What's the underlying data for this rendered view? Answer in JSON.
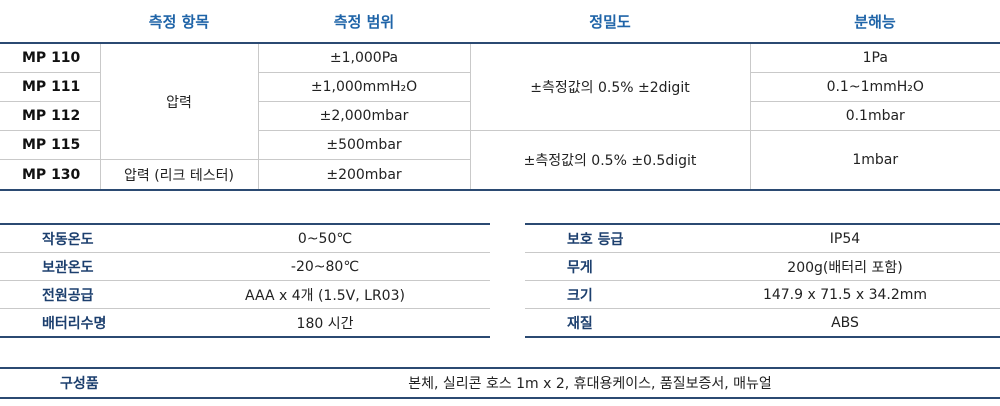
{
  "spec_table": {
    "headers": [
      "측정 항목",
      "측정 범위",
      "정밀도",
      "분해능"
    ],
    "models": [
      "MP 110",
      "MP 111",
      "MP 112",
      "MP 115",
      "MP 130"
    ],
    "items": [
      "압력",
      "압력 (리크 테스터)"
    ],
    "ranges": [
      "±1,000Pa",
      "±1,000mmH₂O",
      "±2,000mbar",
      "±500mbar",
      "±200mbar"
    ],
    "accuracies": [
      "±측정값의 0.5% ±2digit",
      "±측정값의 0.5% ±0.5digit"
    ],
    "resolutions": [
      "1Pa",
      "0.1~1mmH₂O",
      "0.1mbar",
      "1mbar"
    ]
  },
  "general_specs": {
    "left": [
      {
        "label": "작동온도",
        "value": "0~50℃"
      },
      {
        "label": "보관온도",
        "value": "-20~80℃"
      },
      {
        "label": "전원공급",
        "value": "AAA x 4개 (1.5V, LR03)"
      },
      {
        "label": "배터리수명",
        "value": "180 시간"
      }
    ],
    "right": [
      {
        "label": "보호 등급",
        "value": "IP54"
      },
      {
        "label": "무게",
        "value": "200g(배터리 포함)"
      },
      {
        "label": "크기",
        "value": "147.9 x 71.5 x 34.2mm"
      },
      {
        "label": "재질",
        "value": "ABS"
      }
    ]
  },
  "components": {
    "label": "구성품",
    "value": "본체, 실리콘 호스 1m x 2, 휴대용케이스, 품질보증서, 매뉴얼"
  }
}
